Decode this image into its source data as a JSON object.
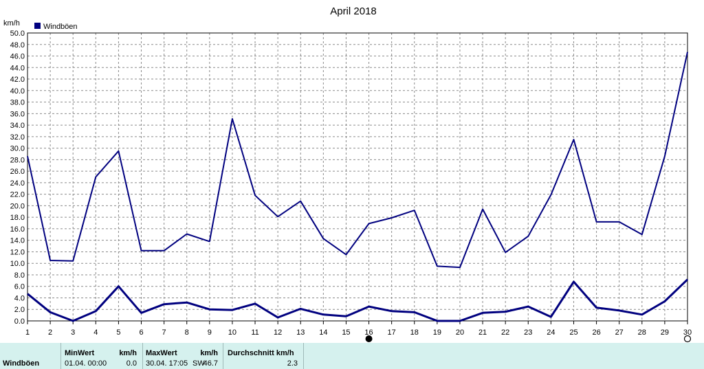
{
  "chart_data": {
    "type": "line",
    "title": "April 2018",
    "ylabel": "km/h",
    "xlabel": "",
    "ylim": [
      0,
      50
    ],
    "ytick_step": 2,
    "x": [
      1,
      2,
      3,
      4,
      5,
      6,
      7,
      8,
      9,
      10,
      11,
      12,
      13,
      14,
      15,
      16,
      17,
      18,
      19,
      20,
      21,
      22,
      23,
      24,
      25,
      26,
      27,
      28,
      29,
      30
    ],
    "grid": true,
    "legend": "top-left",
    "series": [
      {
        "name": "Windböen",
        "color": "#00007f",
        "values_max": [
          28.6,
          10.5,
          10.4,
          25.0,
          29.5,
          12.2,
          12.2,
          15.1,
          13.8,
          35.1,
          21.8,
          18.1,
          20.8,
          14.3,
          11.5,
          16.9,
          17.9,
          19.2,
          9.5,
          9.3,
          19.4,
          11.9,
          14.7,
          21.9,
          31.5,
          17.2,
          17.2,
          15.0,
          28.6,
          46.7
        ],
        "values_avg": [
          4.7,
          1.5,
          0.0,
          1.7,
          6.0,
          1.4,
          2.9,
          3.2,
          2.0,
          1.9,
          3.0,
          0.6,
          2.1,
          1.1,
          0.8,
          2.5,
          1.7,
          1.5,
          0.0,
          0.0,
          1.4,
          1.6,
          2.5,
          0.7,
          6.8,
          2.3,
          1.8,
          1.1,
          3.4,
          7.2
        ]
      }
    ],
    "markers": {
      "filled_day": 16,
      "open_day": 30
    }
  },
  "stats": {
    "row_label": "Windböen",
    "min_header": "MinWert",
    "min_unit": "km/h",
    "min_date": "01.04.  00:00",
    "min_value": "0.0",
    "max_header": "MaxWert",
    "max_unit": "km/h",
    "max_date": "30.04.  17:05",
    "max_dir": "SW",
    "max_value": "46.7",
    "avg_header": "Durchschnitt km/h",
    "avg_value": "2.3"
  }
}
